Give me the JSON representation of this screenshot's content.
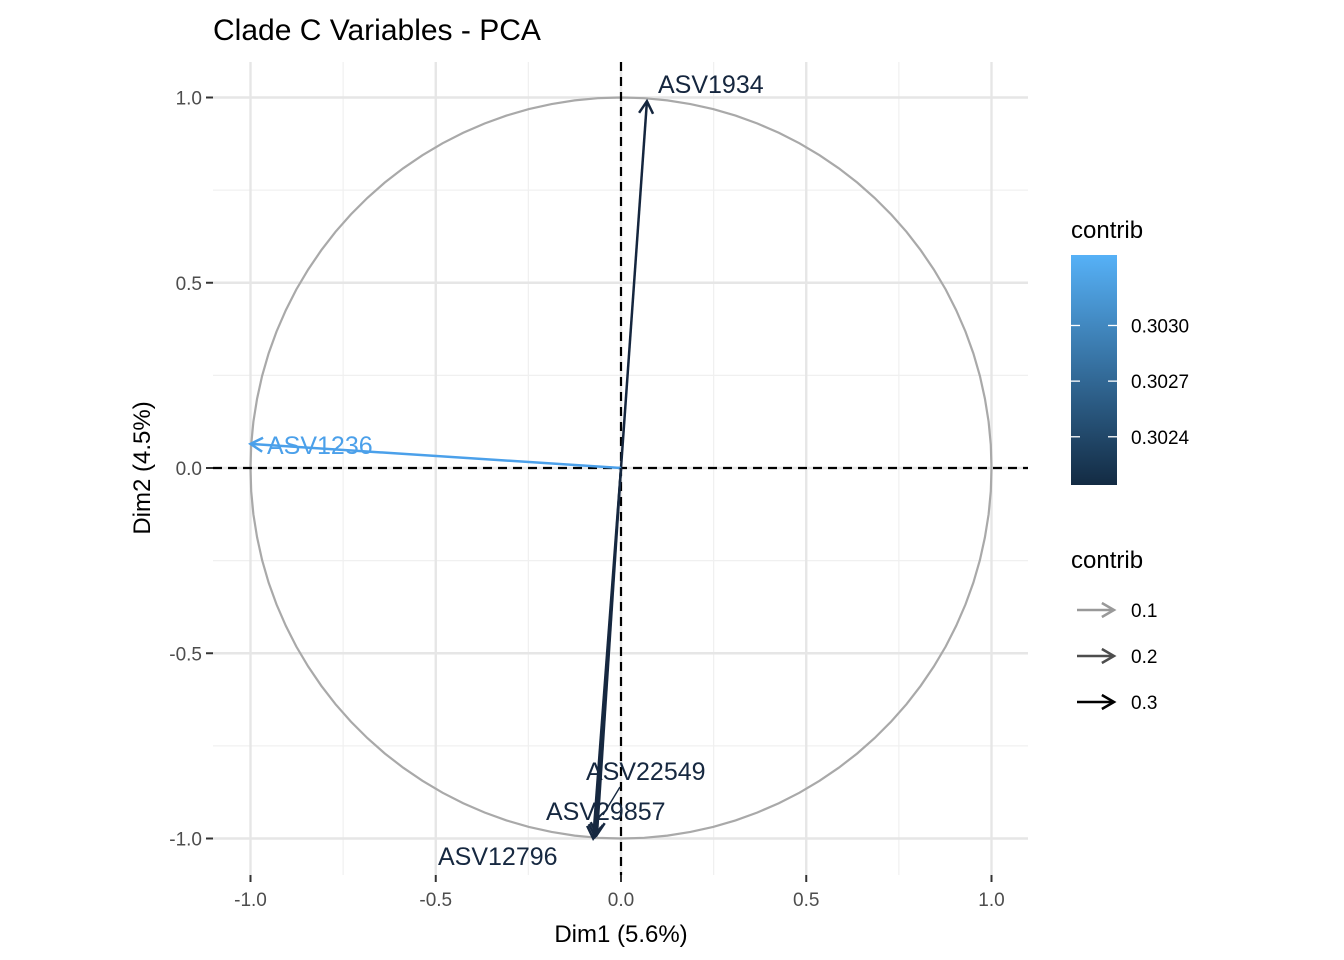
{
  "chart_data": {
    "type": "scatter",
    "subtype": "pca-variable-correlation-circle",
    "title": "Clade C Variables - PCA",
    "xlabel": "Dim1 (5.6%)",
    "ylabel": "Dim2 (4.5%)",
    "xlim": [
      -1.1,
      1.1
    ],
    "ylim": [
      -1.1,
      1.1
    ],
    "x_ticks": [
      -1.0,
      -0.5,
      0.0,
      0.5,
      1.0
    ],
    "x_tick_labels": [
      "-1.0",
      "-0.5",
      "0.0",
      "0.5",
      "1.0"
    ],
    "y_ticks": [
      -1.0,
      -0.5,
      0.0,
      0.5,
      1.0
    ],
    "y_tick_labels": [
      "-1.0",
      "-0.5",
      "0.0",
      "0.5",
      "1.0"
    ],
    "grid": true,
    "unit_circle": true,
    "reference_lines": [
      0,
      0
    ],
    "variables": [
      {
        "name": "ASV1934",
        "x": 0.07,
        "y": 0.99,
        "contrib": 0.3023,
        "color": "#15263e"
      },
      {
        "name": "ASV1236",
        "x": -1.0,
        "y": 0.065,
        "contrib": 0.3033,
        "color": "#4ba0ea"
      },
      {
        "name": "ASV22549",
        "x": -0.065,
        "y": -0.99,
        "contrib": 0.3022,
        "color": "#162840"
      },
      {
        "name": "ASV29857",
        "x": -0.07,
        "y": -0.995,
        "contrib": 0.3022,
        "color": "#162840"
      },
      {
        "name": "ASV12796",
        "x": -0.075,
        "y": -1.0,
        "contrib": 0.3022,
        "color": "#162840"
      }
    ],
    "legend_color": {
      "title": "contrib",
      "ticks": [
        "0.3030",
        "0.3027",
        "0.3024"
      ],
      "tick_values": [
        0.303,
        0.3027,
        0.3024
      ],
      "range": [
        0.30214,
        0.30338
      ],
      "low_color": "#132b43",
      "high_color": "#56b1f7",
      "placement": "right"
    },
    "legend_size": {
      "title": "contrib",
      "entries": [
        {
          "label": "0.1",
          "color": "#999999"
        },
        {
          "label": "0.2",
          "color": "#4d4d4d"
        },
        {
          "label": "0.3",
          "color": "#000000"
        }
      ],
      "placement": "right"
    }
  }
}
